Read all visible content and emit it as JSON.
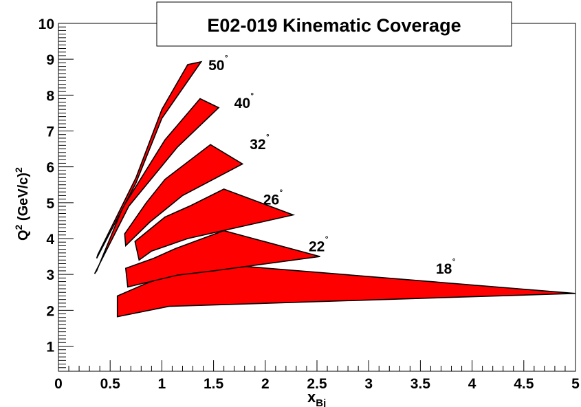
{
  "chart_data": {
    "type": "area",
    "title": "E02-019 Kinematic Coverage",
    "xlabel": {
      "main": "x",
      "sub": "Bj"
    },
    "ylabel": {
      "main": "Q",
      "sup": "2",
      "rest": " (GeV/c)",
      "sup2": "2"
    },
    "xlim": [
      0,
      5
    ],
    "ylim": [
      0.3,
      10
    ],
    "x_ticks": [
      0,
      0.5,
      1,
      1.5,
      2,
      2.5,
      3,
      3.5,
      4,
      4.5,
      5
    ],
    "x_tick_labels": [
      "0",
      "0.5",
      "1",
      "1.5",
      "2",
      "2.5",
      "3",
      "3.5",
      "4",
      "4.5",
      "5"
    ],
    "y_ticks": [
      1,
      2,
      3,
      4,
      5,
      6,
      7,
      8,
      9,
      10
    ],
    "y_tick_labels": [
      "1",
      "2",
      "3",
      "4",
      "5",
      "6",
      "7",
      "8",
      "9",
      "10"
    ],
    "grid": false,
    "fill_color": "#ff0000",
    "regions": [
      {
        "angle": "18",
        "label_at": [
          3.65,
          3.18
        ],
        "polygon": [
          [
            0.57,
            2.4
          ],
          [
            0.85,
            2.75
          ],
          [
            1.07,
            2.98
          ],
          [
            1.35,
            3.12
          ],
          [
            1.78,
            3.23
          ],
          [
            5.0,
            2.47
          ],
          [
            1.07,
            2.11
          ],
          [
            0.57,
            1.82
          ]
        ]
      },
      {
        "angle": "22",
        "label_at": [
          2.42,
          3.8
        ],
        "polygon": [
          [
            0.65,
            3.17
          ],
          [
            0.92,
            3.45
          ],
          [
            1.13,
            3.72
          ],
          [
            1.6,
            4.22
          ],
          [
            2.53,
            3.5
          ],
          [
            1.5,
            3.1
          ],
          [
            1.15,
            2.98
          ],
          [
            0.67,
            2.65
          ]
        ]
      },
      {
        "angle": "26",
        "label_at": [
          1.98,
          5.1
        ],
        "polygon": [
          [
            0.74,
            3.92
          ],
          [
            1.03,
            4.6
          ],
          [
            1.28,
            4.92
          ],
          [
            1.6,
            5.38
          ],
          [
            2.27,
            4.66
          ],
          [
            1.25,
            4.0
          ],
          [
            0.9,
            3.65
          ],
          [
            0.78,
            3.4
          ]
        ]
      },
      {
        "angle": "32",
        "label_at": [
          1.85,
          6.65
        ],
        "polygon": [
          [
            0.64,
            4.13
          ],
          [
            0.85,
            5.0
          ],
          [
            1.03,
            5.65
          ],
          [
            1.47,
            6.62
          ],
          [
            1.78,
            6.08
          ],
          [
            1.2,
            5.2
          ],
          [
            0.88,
            4.45
          ],
          [
            0.65,
            3.8
          ]
        ]
      },
      {
        "angle": "40",
        "label_at": [
          1.7,
          7.8
        ],
        "polygon": [
          [
            0.37,
            3.1
          ],
          [
            0.62,
            4.85
          ],
          [
            1.03,
            6.75
          ],
          [
            1.37,
            7.9
          ],
          [
            1.55,
            7.65
          ],
          [
            1.15,
            6.55
          ],
          [
            0.68,
            4.9
          ],
          [
            0.35,
            3.02
          ]
        ]
      },
      {
        "angle": "50",
        "label_at": [
          1.45,
          8.85
        ],
        "polygon": [
          [
            0.38,
            3.55
          ],
          [
            0.75,
            5.7
          ],
          [
            1.0,
            7.6
          ],
          [
            1.25,
            8.85
          ],
          [
            1.38,
            8.93
          ],
          [
            1.0,
            7.35
          ],
          [
            0.75,
            5.55
          ],
          [
            0.37,
            3.45
          ]
        ]
      }
    ]
  }
}
